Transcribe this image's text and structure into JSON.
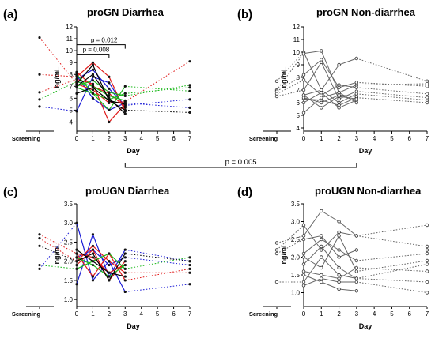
{
  "chart_data": [
    {
      "id": "a",
      "type": "line",
      "panel_label": "(a)",
      "title": "proGN Diarrhea",
      "ylabel": "ng/mL",
      "xlabel": "Day",
      "screening_label": "Screening",
      "xticks": [
        "0",
        "1",
        "2",
        "3",
        "4",
        "5",
        "6",
        "7"
      ],
      "ylim": [
        3.5,
        12
      ],
      "yticks": [
        4,
        5,
        6,
        7,
        8,
        9,
        10,
        11,
        12
      ],
      "style": "color",
      "annotations": [
        {
          "text": "p = 0.012",
          "from_day": 0,
          "to_day": 3,
          "y": 10.5
        },
        {
          "text": "p = 0.008",
          "from_day": 0,
          "to_day": 2,
          "y": 9.7
        }
      ],
      "series": [
        {
          "color": "#1a1ad6",
          "values": [
            4.9,
            7.8,
            7.3,
            5.2
          ],
          "screening": 5.3
        },
        {
          "color": "#1a1ad6",
          "values": [
            7.6,
            8.4,
            6.8,
            5.4
          ],
          "day7": 5.9
        },
        {
          "color": "#1a1ad6",
          "values": [
            7.9,
            6.0,
            5.0,
            5.6
          ],
          "day7": 5.2
        },
        {
          "color": "#e01818",
          "values": [
            7.6,
            7.2,
            4.0,
            5.5
          ],
          "screening": 6.5
        },
        {
          "color": "#e01818",
          "values": [
            7.8,
            9.0,
            7.8,
            4.9
          ],
          "screening": 8.0
        },
        {
          "color": "#e01818",
          "values": [
            7.2,
            6.7,
            5.6,
            5.7
          ],
          "screening": 11.1,
          "day7": 9.1
        },
        {
          "color": "#e01818",
          "values": [
            8.2,
            7.0,
            6.4,
            5.3
          ]
        },
        {
          "color": "#18b818",
          "values": [
            7.4,
            7.0,
            6.2,
            5.8
          ],
          "screening": 5.9
        },
        {
          "color": "#18b818",
          "values": [
            7.0,
            7.5,
            6.5,
            6.2
          ],
          "day7": 7.1
        },
        {
          "color": "#18b818",
          "values": [
            6.9,
            6.4,
            5.9,
            6.4
          ],
          "day7": 6.9
        },
        {
          "color": "#18b818",
          "values": [
            8.0,
            6.4,
            5.0,
            7.0
          ],
          "day7": 6.6
        },
        {
          "color": "#000000",
          "values": [
            7.2,
            8.8,
            5.8,
            5.0
          ],
          "day7": 4.8
        },
        {
          "color": "#000000",
          "values": [
            6.4,
            6.9,
            5.8,
            5.5
          ]
        },
        {
          "color": "#000000",
          "values": [
            7.0,
            8.0,
            6.0,
            4.7
          ]
        }
      ]
    },
    {
      "id": "b",
      "type": "line",
      "panel_label": "(b)",
      "title": "proGN Non-diarrhea",
      "ylabel": "ng/mL",
      "xlabel": "Day",
      "screening_label": "Screening",
      "xticks": [
        "0",
        "1",
        "2",
        "3",
        "4",
        "5",
        "6",
        "7"
      ],
      "ylim": [
        4,
        12
      ],
      "yticks": [
        4,
        5,
        6,
        7,
        8,
        9,
        10,
        11,
        12
      ],
      "style": "gray",
      "annotations": [],
      "series": [
        {
          "values": [
            10.0,
            7.0,
            9.0,
            9.5
          ],
          "screening": 7.7,
          "day7": 7.7
        },
        {
          "values": [
            9.9,
            10.1,
            6.8,
            7.4
          ],
          "screening": 7.0,
          "day7": 7.5
        },
        {
          "values": [
            8.2,
            9.4,
            7.2,
            7.6
          ],
          "screening": 6.9,
          "day7": 7.3
        },
        {
          "values": [
            7.8,
            6.6,
            7.4,
            7.2
          ],
          "screening": 6.7,
          "day7": 6.7
        },
        {
          "values": [
            7.0,
            9.2,
            6.3,
            6.9
          ],
          "screening": 6.5,
          "day7": 6.4
        },
        {
          "values": [
            6.6,
            7.0,
            6.0,
            6.7
          ],
          "day7": 6.2
        },
        {
          "values": [
            6.3,
            6.2,
            5.8,
            6.4
          ],
          "day7": 6.0
        },
        {
          "values": [
            6.0,
            6.8,
            5.6,
            6.2
          ]
        },
        {
          "values": [
            5.2,
            6.4,
            6.8,
            6.0
          ]
        },
        {
          "values": [
            6.6,
            5.6,
            6.5,
            6.3
          ]
        },
        {
          "values": [
            6.4,
            6.0,
            6.6,
            6.5
          ]
        }
      ]
    },
    {
      "id": "c",
      "type": "line",
      "panel_label": "(c)",
      "title": "proUGN Diarrhea",
      "ylabel": "ng/mL",
      "xlabel": "Day",
      "screening_label": "Screening",
      "xticks": [
        "0",
        "1",
        "2",
        "3",
        "4",
        "5",
        "6",
        "7"
      ],
      "ylim": [
        0.9,
        3.5
      ],
      "yticks": [
        1.0,
        1.5,
        2.0,
        2.5,
        3.0,
        3.5
      ],
      "style": "color",
      "annotations": [],
      "series": [
        {
          "color": "#1a1ad6",
          "values": [
            3.0,
            1.5,
            2.0,
            1.2
          ],
          "screening": 1.8,
          "day7": 1.4
        },
        {
          "color": "#1a1ad6",
          "values": [
            1.4,
            2.7,
            1.6,
            2.3
          ],
          "day7": 2.0
        },
        {
          "color": "#1a1ad6",
          "values": [
            2.1,
            2.3,
            1.9,
            2.1
          ],
          "day7": 1.9
        },
        {
          "color": "#e01818",
          "values": [
            2.2,
            1.6,
            2.2,
            1.5
          ],
          "screening": 2.7,
          "day7": 1.8
        },
        {
          "color": "#e01818",
          "values": [
            2.0,
            2.4,
            2.0,
            1.7
          ],
          "screening": 2.6,
          "day7": 1.7
        },
        {
          "color": "#e01818",
          "values": [
            1.9,
            2.3,
            1.5,
            2.0
          ]
        },
        {
          "color": "#e01818",
          "values": [
            2.2,
            2.1,
            1.7,
            1.9
          ]
        },
        {
          "color": "#18b818",
          "values": [
            1.8,
            2.0,
            2.2,
            1.8
          ],
          "screening": 1.9,
          "day7": 2.1
        },
        {
          "color": "#18b818",
          "values": [
            2.1,
            1.9,
            1.6,
            1.9
          ]
        },
        {
          "color": "#000000",
          "values": [
            2.0,
            2.2,
            1.5,
            2.2
          ],
          "screening": 2.4,
          "day7": 2.0
        },
        {
          "color": "#000000",
          "values": [
            2.3,
            2.0,
            1.7,
            1.6
          ]
        }
      ]
    },
    {
      "id": "d",
      "type": "line",
      "panel_label": "(d)",
      "title": "proUGN Non-diarrhea",
      "ylabel": "ng/mL",
      "xlabel": "Day",
      "screening_label": "Screening",
      "xticks": [
        "0",
        "1",
        "2",
        "3",
        "4",
        "5",
        "6",
        "7"
      ],
      "ylim": [
        0.7,
        3.5
      ],
      "yticks": [
        1.0,
        1.5,
        2.0,
        2.5,
        3.0,
        3.5
      ],
      "style": "gray",
      "annotations": [],
      "series": [
        {
          "values": [
            2.6,
            3.3,
            3.0,
            2.6
          ],
          "screening": 2.4,
          "day7": 2.9
        },
        {
          "values": [
            2.9,
            2.2,
            2.7,
            2.6
          ],
          "screening": 2.2,
          "day7": 2.3
        },
        {
          "values": [
            2.5,
            2.6,
            2.0,
            2.2
          ],
          "screening": 2.1,
          "day7": 2.2
        },
        {
          "values": [
            2.1,
            2.5,
            2.2,
            1.9
          ],
          "day7": 2.1
        },
        {
          "values": [
            2.0,
            1.7,
            2.6,
            1.6
          ],
          "day7": 1.9
        },
        {
          "values": [
            1.8,
            2.3,
            1.7,
            1.4
          ],
          "day7": 1.8
        },
        {
          "values": [
            1.6,
            1.5,
            1.4,
            1.7
          ],
          "day7": 1.6
        },
        {
          "values": [
            1.3,
            2.0,
            1.5,
            1.4
          ],
          "screening": 1.3,
          "day7": 1.3
        },
        {
          "values": [
            1.2,
            1.4,
            1.3,
            1.3
          ],
          "day7": 1.0
        },
        {
          "values": [
            1.5,
            1.3,
            1.1,
            1.05
          ]
        }
      ]
    }
  ],
  "between_panels": {
    "text": "p = 0.005",
    "from_panel": "a",
    "to_panel": "b",
    "from_day": 3,
    "to_day": 3
  }
}
